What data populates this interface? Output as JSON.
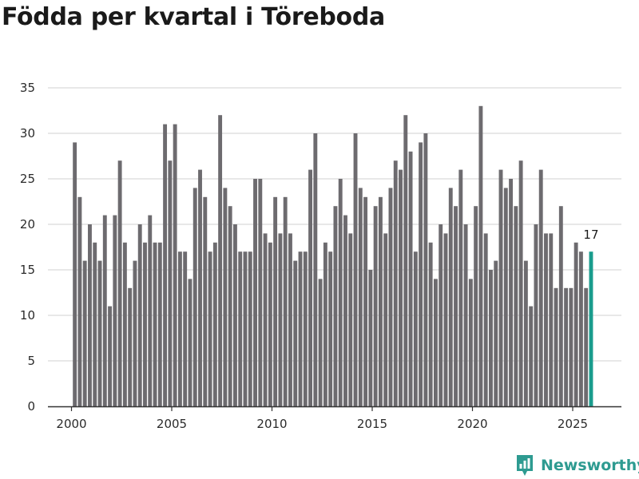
{
  "header": {
    "title": "Födda per kvartal i Töreboda"
  },
  "brand": {
    "name": "Newsworthy"
  },
  "colors": {
    "bar": "#6d6b6f",
    "highlight": "#1a9c8d",
    "grid": "#d9d9d9",
    "axis": "#333333",
    "brand": "#2e9b91"
  },
  "chart_data": {
    "type": "bar",
    "title": "Födda per kvartal i Töreboda",
    "xlabel": "",
    "ylabel": "",
    "ylim": [
      0,
      35
    ],
    "yticks": [
      0,
      5,
      10,
      15,
      20,
      25,
      30,
      35
    ],
    "xticks": [
      2000,
      2005,
      2010,
      2015,
      2020,
      2025
    ],
    "start_year": 2000,
    "start_quarter": 1,
    "grid": true,
    "highlight_last": true,
    "last_label": "17",
    "values": [
      29,
      23,
      16,
      20,
      18,
      16,
      21,
      11,
      21,
      27,
      18,
      13,
      16,
      20,
      18,
      21,
      18,
      18,
      31,
      27,
      31,
      17,
      17,
      14,
      24,
      26,
      23,
      17,
      18,
      32,
      24,
      22,
      20,
      17,
      17,
      17,
      25,
      25,
      19,
      18,
      23,
      19,
      23,
      19,
      16,
      17,
      17,
      26,
      30,
      14,
      18,
      17,
      22,
      25,
      21,
      19,
      30,
      24,
      23,
      15,
      22,
      23,
      19,
      24,
      27,
      26,
      32,
      28,
      17,
      29,
      30,
      18,
      14,
      20,
      19,
      24,
      22,
      26,
      20,
      14,
      22,
      33,
      19,
      15,
      16,
      26,
      24,
      25,
      22,
      27,
      16,
      11,
      20,
      26,
      19,
      19,
      13,
      22,
      13,
      13,
      18,
      17,
      13,
      17
    ]
  }
}
